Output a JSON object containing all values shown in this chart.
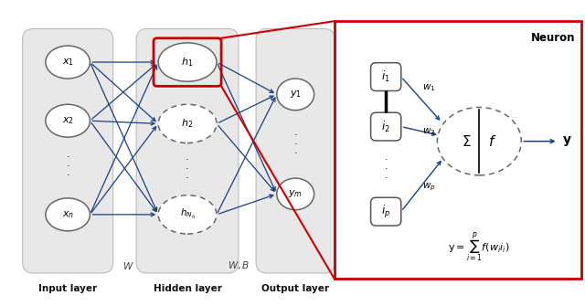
{
  "fig_width": 6.4,
  "fig_height": 3.35,
  "dpi": 100,
  "bg_color": "#ffffff",
  "panel_color": "#e8e8e8",
  "node_fill": "#ffffff",
  "node_edge": "#666666",
  "arrow_color": "#1a4080",
  "red_color": "#cc0000",
  "input_nodes": [
    "$\\boldsymbol{x_1}$",
    "$\\boldsymbol{x_2}$",
    "$\\boldsymbol{x_n}$"
  ],
  "hidden_nodes": [
    "$\\boldsymbol{h_1}$",
    "$\\boldsymbol{h_2}$",
    "$\\boldsymbol{h_{N_h}}$"
  ],
  "output_nodes": [
    "$\\boldsymbol{y_1}$",
    "$\\boldsymbol{y_m}$"
  ],
  "neuron_inputs": [
    "$\\boldsymbol{i_1}$",
    "$\\boldsymbol{i_2}$",
    "$\\boldsymbol{i_p}$"
  ],
  "layer_labels": [
    "Input layer",
    "Hidden layer",
    "Output layer"
  ],
  "w_label": "$W$",
  "wb_label": "$W, B$",
  "neuron_title": "Neuron",
  "neuron_eq": "$\\mathrm{y} = \\sum_{i=1}^{p} f(w_i i_i)$",
  "w1_label": "$w_1$",
  "w2_label": "$w_2$",
  "wp_label": "$w_p$",
  "sum_label": "$\\Sigma$",
  "f_label": "$f$",
  "y_out_label": "$\\mathbf{y}$"
}
